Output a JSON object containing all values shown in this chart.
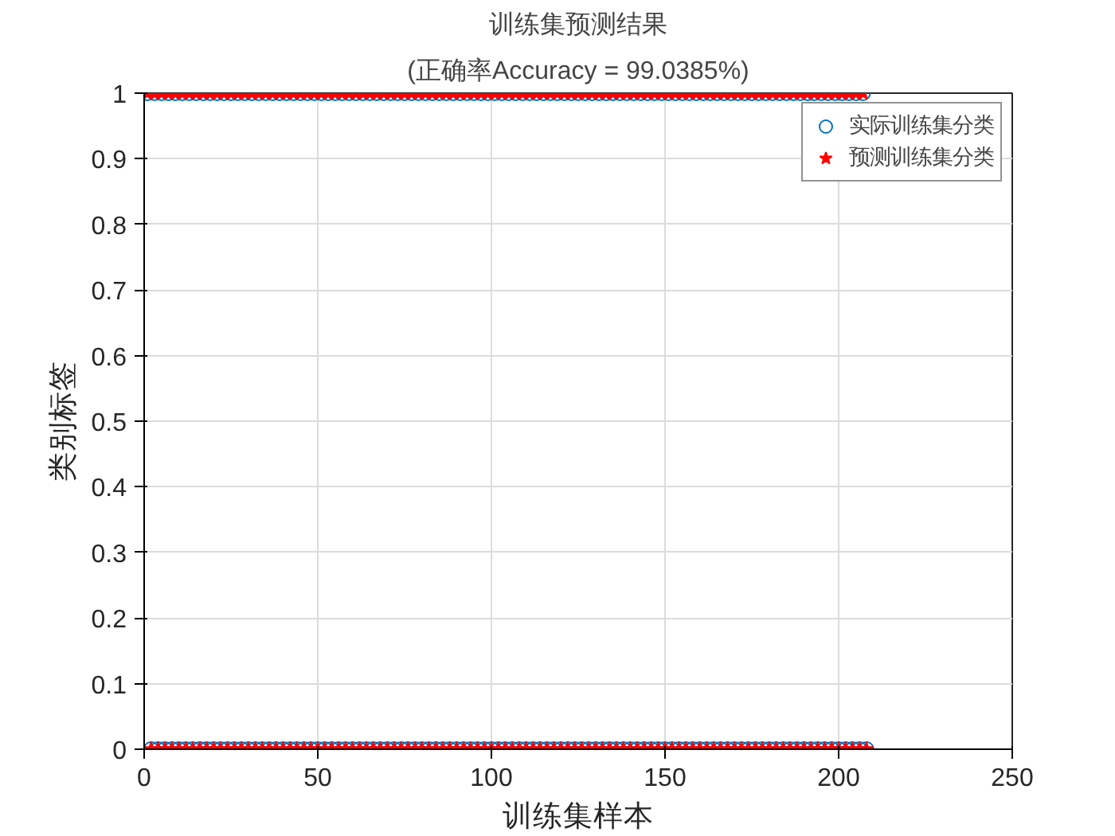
{
  "chart_data": {
    "type": "scatter",
    "title": "训练集预测结果",
    "subtitle": "(正确率Accuracy = 99.0385%)",
    "xlabel": "训练集样本",
    "ylabel": "类别标签",
    "x": [
      1,
      2,
      3,
      4,
      5,
      6,
      7,
      8,
      9,
      10,
      11,
      12,
      13,
      14,
      15,
      16,
      17,
      18,
      19,
      20,
      21,
      22,
      23,
      24,
      25,
      26,
      27,
      28,
      29,
      30,
      31,
      32,
      33,
      34,
      35,
      36,
      37,
      38,
      39,
      40,
      41,
      42,
      43,
      44,
      45,
      46,
      47,
      48,
      49,
      50,
      51,
      52,
      53,
      54,
      55,
      56,
      57,
      58,
      59,
      60,
      61,
      62,
      63,
      64,
      65,
      66,
      67,
      68,
      69,
      70,
      71,
      72,
      73,
      74,
      75,
      76,
      77,
      78,
      79,
      80,
      81,
      82,
      83,
      84,
      85,
      86,
      87,
      88,
      89,
      90,
      91,
      92,
      93,
      94,
      95,
      96,
      97,
      98,
      99,
      100,
      101,
      102,
      103,
      104,
      105,
      106,
      107,
      108,
      109,
      110,
      111,
      112,
      113,
      114,
      115,
      116,
      117,
      118,
      119,
      120,
      121,
      122,
      123,
      124,
      125,
      126,
      127,
      128,
      129,
      130,
      131,
      132,
      133,
      134,
      135,
      136,
      137,
      138,
      139,
      140,
      141,
      142,
      143,
      144,
      145,
      146,
      147,
      148,
      149,
      150,
      151,
      152,
      153,
      154,
      155,
      156,
      157,
      158,
      159,
      160,
      161,
      162,
      163,
      164,
      165,
      166,
      167,
      168,
      169,
      170,
      171,
      172,
      173,
      174,
      175,
      176,
      177,
      178,
      179,
      180,
      181,
      182,
      183,
      184,
      185,
      186,
      187,
      188,
      189,
      190,
      191,
      192,
      193,
      194,
      195,
      196,
      197,
      198,
      199,
      200,
      201,
      202,
      203,
      204,
      205,
      206,
      207,
      208
    ],
    "series": [
      {
        "name": "实际训练集分类",
        "color": "#0072bd",
        "marker": "circle",
        "values": [
          1,
          0,
          1,
          0,
          1,
          0,
          1,
          0,
          1,
          0,
          1,
          0,
          1,
          0,
          1,
          0,
          1,
          0,
          1,
          0,
          1,
          0,
          1,
          0,
          1,
          0,
          1,
          0,
          1,
          0,
          1,
          0,
          1,
          0,
          1,
          0,
          1,
          0,
          1,
          0,
          1,
          0,
          1,
          0,
          1,
          0,
          1,
          0,
          1,
          0,
          1,
          0,
          1,
          0,
          1,
          0,
          1,
          0,
          1,
          0,
          1,
          0,
          1,
          0,
          1,
          0,
          1,
          0,
          1,
          0,
          1,
          0,
          1,
          0,
          1,
          0,
          1,
          0,
          1,
          0,
          1,
          0,
          1,
          0,
          1,
          0,
          1,
          0,
          1,
          0,
          1,
          0,
          1,
          0,
          1,
          0,
          1,
          0,
          1,
          0,
          1,
          0,
          1,
          0,
          1,
          0,
          1,
          0,
          1,
          0,
          1,
          0,
          1,
          0,
          1,
          0,
          1,
          0,
          1,
          0,
          1,
          0,
          1,
          0,
          1,
          0,
          1,
          0,
          1,
          0,
          1,
          0,
          1,
          0,
          1,
          0,
          1,
          0,
          1,
          0,
          1,
          0,
          1,
          0,
          1,
          0,
          1,
          0,
          1,
          0,
          1,
          0,
          1,
          0,
          1,
          0,
          1,
          0,
          1,
          0,
          1,
          0,
          1,
          0,
          1,
          0,
          1,
          0,
          1,
          0,
          1,
          0,
          1,
          0,
          1,
          0,
          1,
          0,
          1,
          0,
          1,
          0,
          1,
          0,
          1,
          0,
          1,
          0,
          1,
          0,
          1,
          0,
          1,
          0,
          1,
          0,
          1,
          0,
          1,
          0,
          1,
          0,
          1,
          0,
          1,
          0,
          1,
          0
        ]
      },
      {
        "name": "预测训练集分类",
        "color": "#ff0000",
        "marker": "star",
        "values": [
          1,
          0,
          1,
          0,
          1,
          0,
          1,
          0,
          1,
          0,
          1,
          0,
          1,
          0,
          1,
          0,
          1,
          0,
          1,
          0,
          1,
          0,
          1,
          0,
          1,
          0,
          1,
          0,
          1,
          0,
          1,
          0,
          1,
          0,
          1,
          0,
          1,
          0,
          1,
          0,
          1,
          0,
          1,
          0,
          1,
          0,
          1,
          0,
          1,
          0,
          1,
          0,
          1,
          0,
          1,
          0,
          1,
          0,
          1,
          0,
          1,
          0,
          1,
          0,
          1,
          0,
          1,
          0,
          1,
          0,
          1,
          0,
          1,
          0,
          1,
          0,
          1,
          0,
          1,
          0,
          1,
          0,
          1,
          0,
          1,
          0,
          1,
          0,
          1,
          0,
          1,
          0,
          1,
          0,
          1,
          0,
          1,
          0,
          1,
          0,
          1,
          0,
          1,
          0,
          1,
          0,
          1,
          0,
          1,
          0,
          1,
          0,
          1,
          0,
          1,
          0,
          1,
          0,
          1,
          0,
          1,
          0,
          1,
          0,
          1,
          0,
          1,
          0,
          1,
          0,
          1,
          0,
          1,
          0,
          1,
          0,
          1,
          0,
          1,
          0,
          1,
          0,
          1,
          0,
          1,
          0,
          1,
          0,
          1,
          0,
          1,
          0,
          1,
          0,
          1,
          0,
          1,
          0,
          1,
          0,
          1,
          0,
          1,
          0,
          1,
          0,
          1,
          0,
          1,
          0,
          1,
          0,
          1,
          0,
          1,
          0,
          1,
          0,
          1,
          0,
          1,
          0,
          1,
          0,
          1,
          0,
          1,
          0,
          1,
          0,
          1,
          0,
          1,
          0,
          1,
          0,
          1,
          0,
          1,
          0,
          1,
          0,
          1,
          0,
          1,
          0,
          1,
          0
        ]
      }
    ],
    "xlim": [
      0,
      250
    ],
    "xticks": [
      0,
      50,
      100,
      150,
      200,
      250
    ],
    "ylim": [
      0,
      1
    ],
    "yticks": [
      0,
      0.1,
      0.2,
      0.3,
      0.4,
      0.5,
      0.6,
      0.7,
      0.8,
      0.9,
      1
    ],
    "grid": true,
    "legend": "top right"
  }
}
